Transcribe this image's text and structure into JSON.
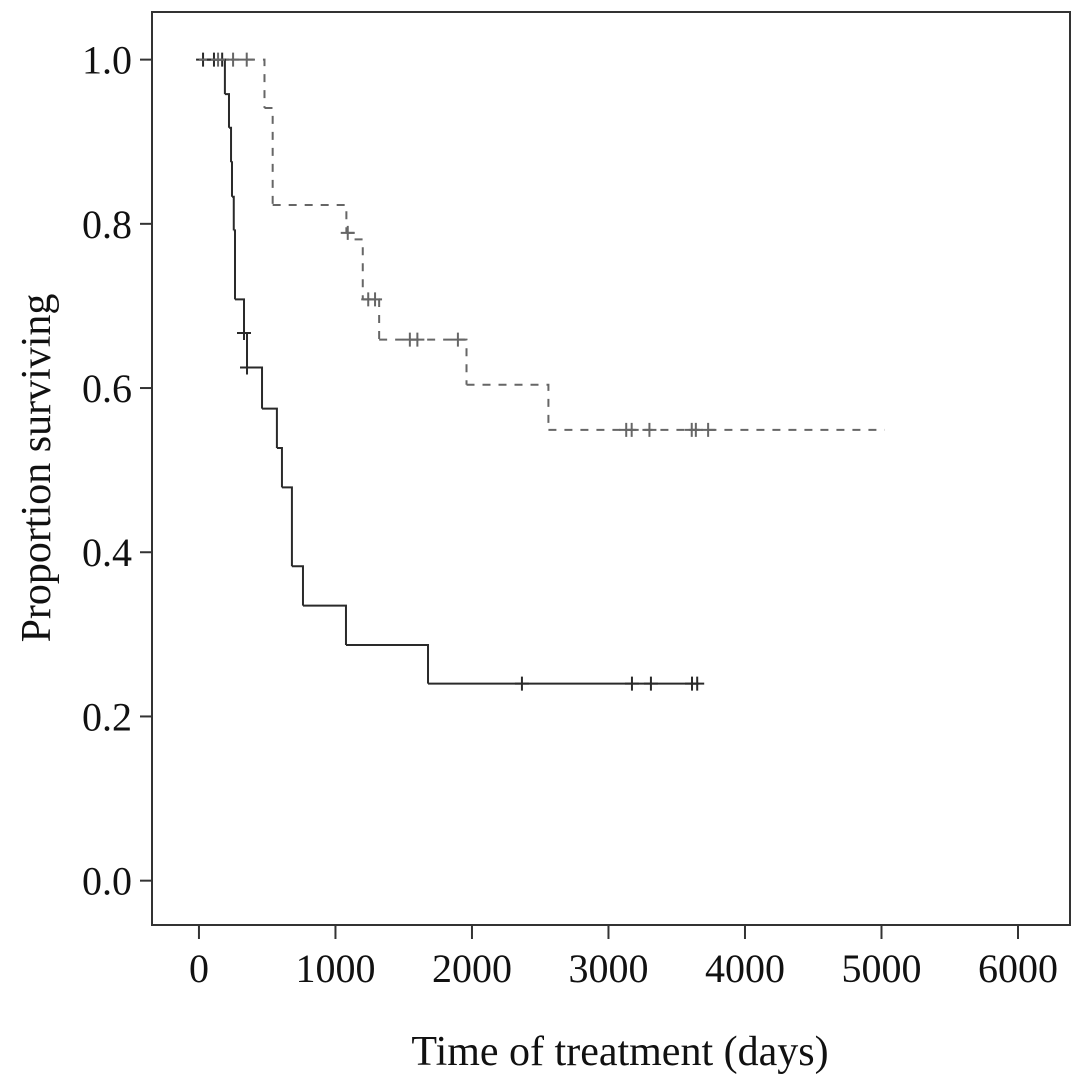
{
  "chart_data": {
    "type": "step",
    "x_label": "Time of treatment (days)",
    "y_label": "Proportion surviving",
    "xlim": [
      -344,
      6381
    ],
    "ylim": [
      -0.054,
      1.058
    ],
    "xticks": [
      0,
      1000,
      2000,
      3000,
      4000,
      5000,
      6000
    ],
    "yticks": [
      {
        "value": 0,
        "label": "0.0"
      },
      0.2,
      0.4,
      0.6,
      0.8,
      {
        "value": 1,
        "label": "1.0"
      }
    ],
    "series": [
      {
        "color": "#2a2a2a",
        "dashed": false,
        "x": [
          0,
          190,
          220,
          235,
          242,
          255,
          264,
          330,
          352,
          462,
          571,
          608,
          681,
          762,
          1077,
          1678,
          3648
        ],
        "values": [
          1.0,
          0.958,
          0.917,
          0.875,
          0.833,
          0.792,
          0.708,
          0.667,
          0.625,
          0.575,
          0.527,
          0.479,
          0.383,
          0.335,
          0.287,
          0.24,
          0.24
        ],
        "censor_x": [
          30,
          110,
          170,
          330,
          352,
          2366,
          3172,
          3311,
          3612,
          3650
        ],
        "censor_values": [
          1.0,
          1.0,
          1.0,
          0.667,
          0.625,
          0.24,
          0.24,
          0.24,
          0.24,
          0.24
        ]
      },
      {
        "color": "#666666",
        "dashed": true,
        "x": [
          0,
          480,
          540,
          1080,
          1140,
          1200,
          1320,
          1960,
          2560,
          5020
        ],
        "values": [
          1.0,
          0.941,
          0.823,
          0.789,
          0.781,
          0.708,
          0.659,
          0.604,
          0.549,
          0.549
        ],
        "censor_x": [
          140,
          250,
          350,
          1090,
          1240,
          1290,
          1545,
          1600,
          1897,
          3130,
          3170,
          3300,
          3610,
          3640,
          3730
        ],
        "censor_values": [
          1.0,
          1.0,
          1.0,
          0.789,
          0.708,
          0.708,
          0.659,
          0.659,
          0.659,
          0.549,
          0.549,
          0.549,
          0.549,
          0.549,
          0.549
        ]
      }
    ]
  }
}
